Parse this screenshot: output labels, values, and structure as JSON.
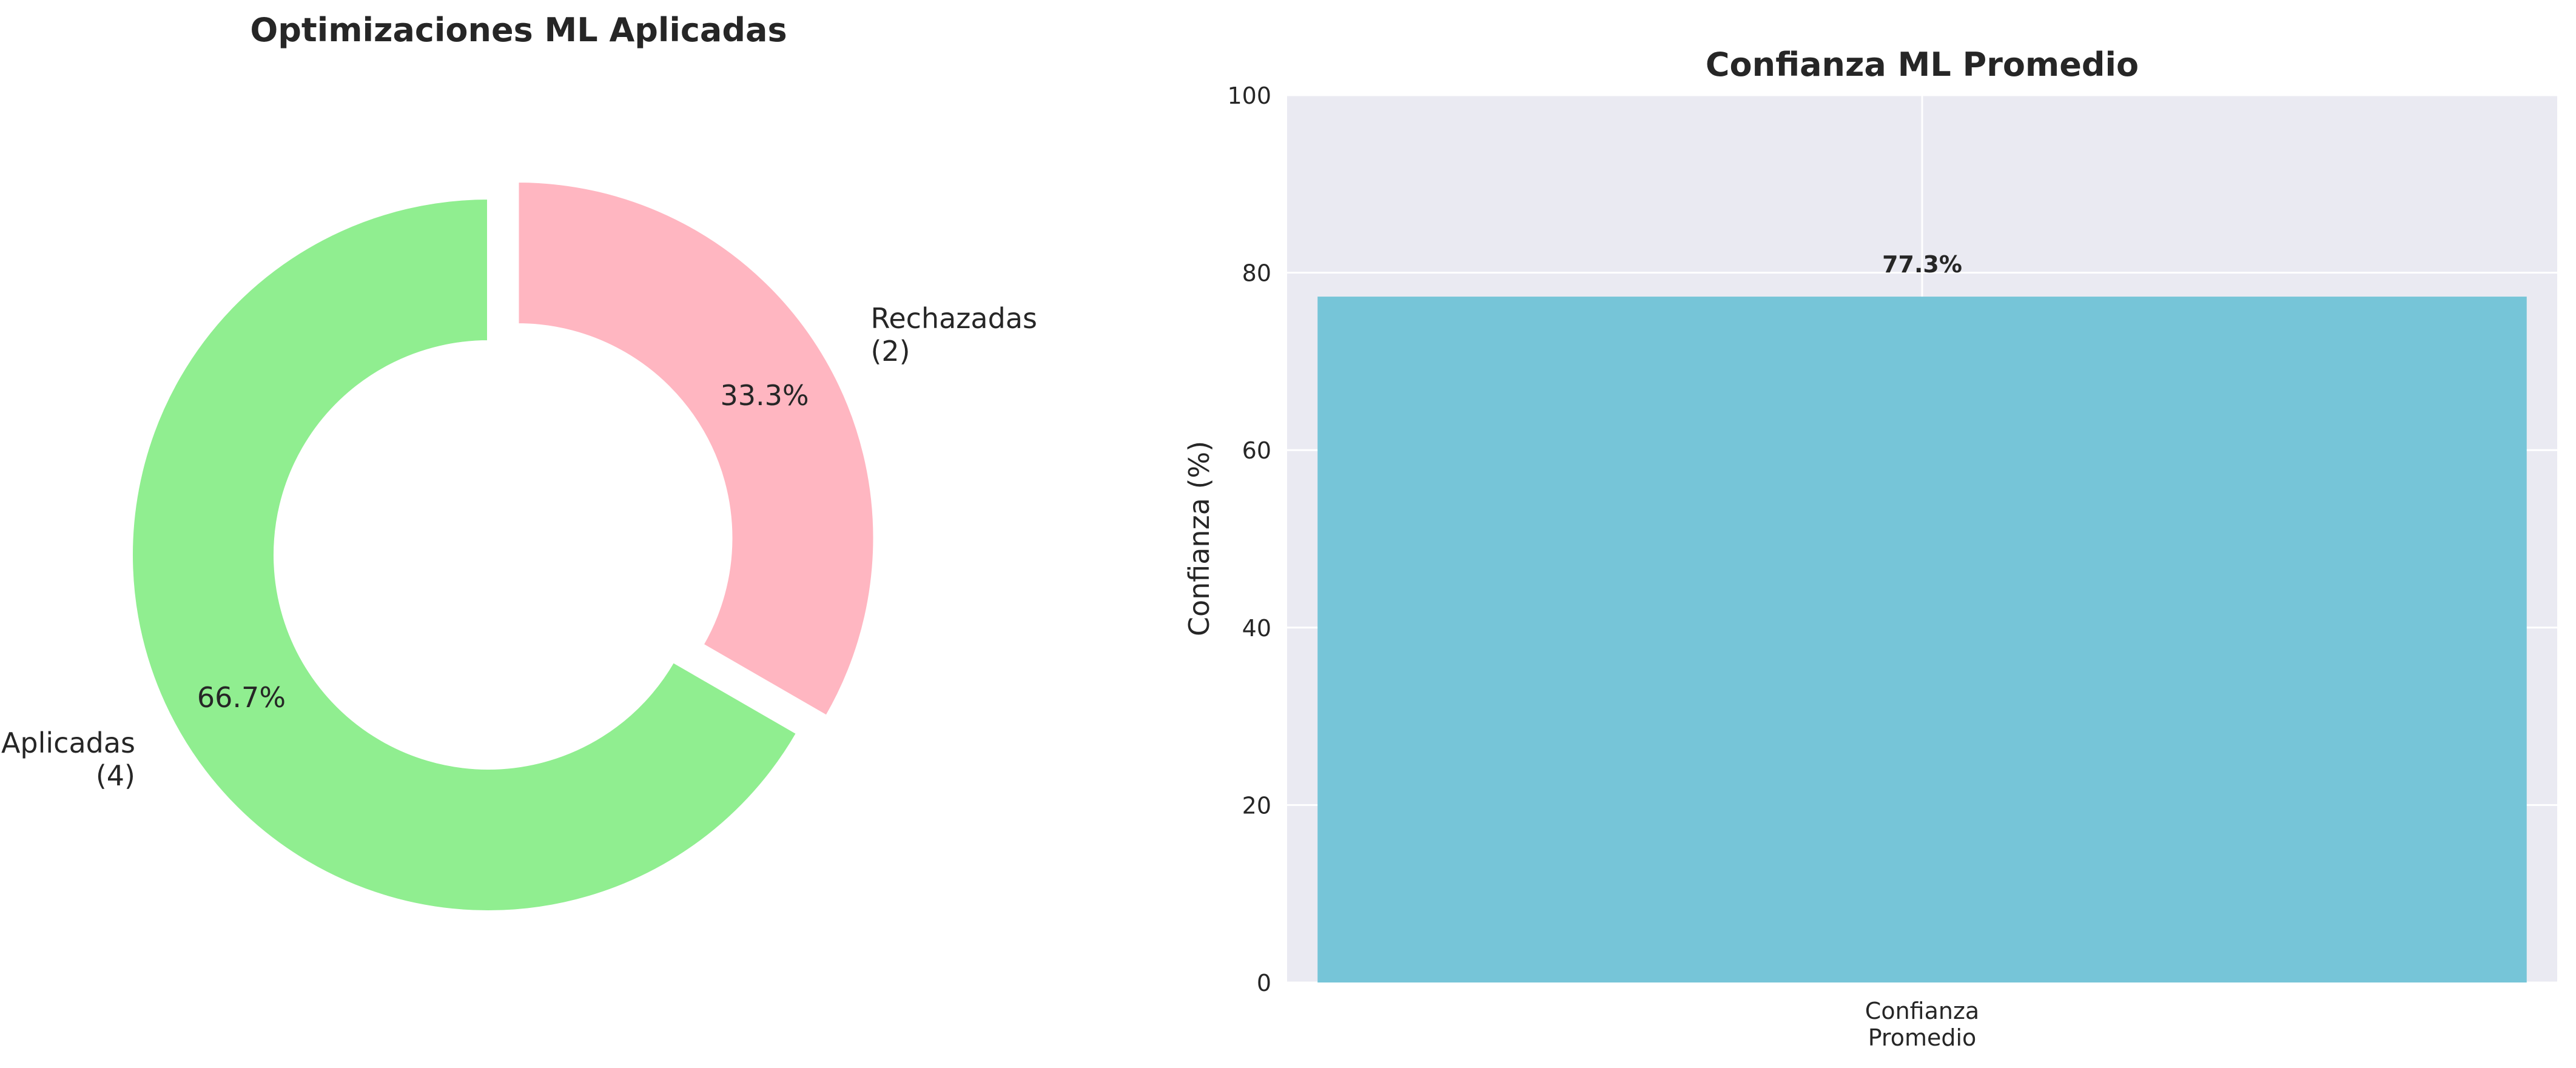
{
  "chart_data": [
    {
      "type": "pie",
      "title": "Optimizaciones ML Aplicadas",
      "donut": true,
      "start_angle_deg": 90,
      "direction": "clockwise",
      "slices": [
        {
          "label": "Rechazadas\n(2)",
          "value": 2,
          "percent_label": "33.3%",
          "color": "#ffb6c1",
          "exploded": true
        },
        {
          "label": "Aplicadas\n(4)",
          "value": 4,
          "percent_label": "66.7%",
          "color": "#90ee90",
          "exploded": false
        }
      ]
    },
    {
      "type": "bar",
      "title": "Confianza ML Promedio",
      "categories": [
        "Confianza\nPromedio"
      ],
      "values": [
        77.3
      ],
      "data_labels": [
        "77.3%"
      ],
      "xlabel": "",
      "ylabel": "Confianza (%)",
      "ylim": [
        0,
        100
      ],
      "yticks": [
        0,
        20,
        40,
        60,
        80,
        100
      ],
      "grid": true,
      "background": "#eaeaf2",
      "bar_color": "#76c5d8"
    }
  ]
}
